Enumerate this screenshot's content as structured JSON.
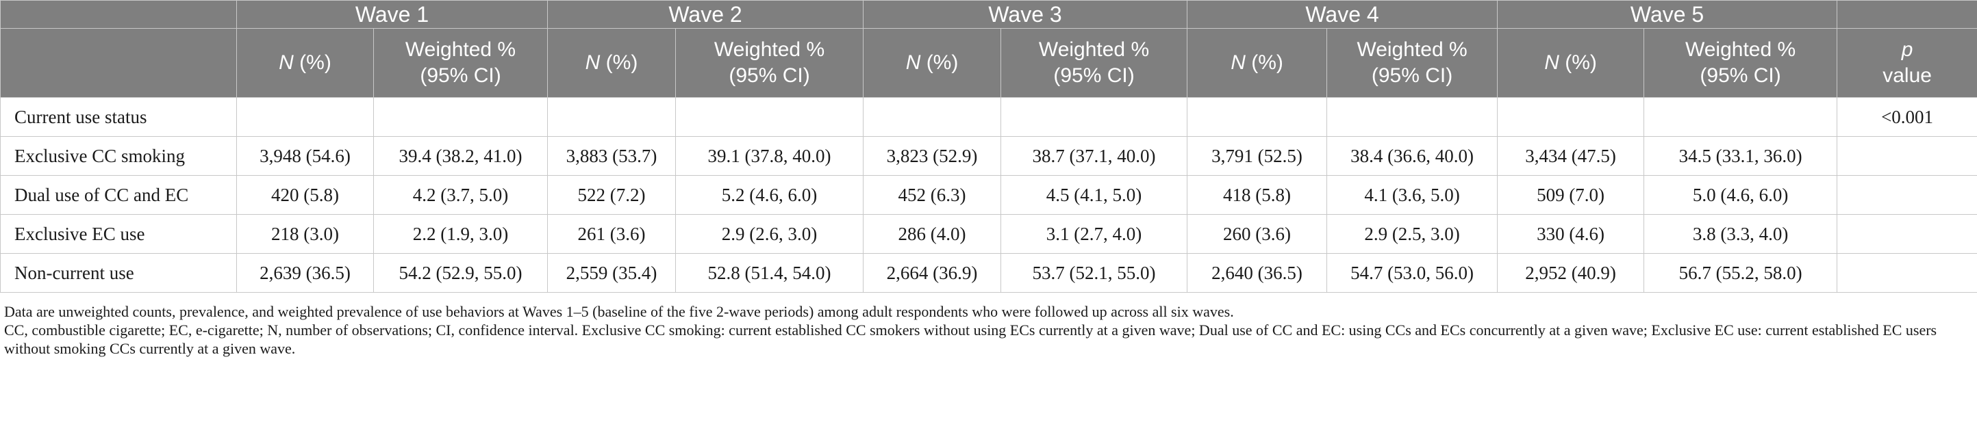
{
  "header": {
    "waves": [
      "Wave 1",
      "Wave 2",
      "Wave 3",
      "Wave 4",
      "Wave 5"
    ],
    "n_label_italic": "N",
    "n_label_rest": " (%)",
    "weighted_label_line1": "Weighted %",
    "weighted_label_line2": "(95% CI)",
    "p_label_line1": "p",
    "p_label_line2": "value"
  },
  "rows": [
    {
      "label": "Current use status",
      "cells": [
        "",
        "",
        "",
        "",
        "",
        "",
        "",
        "",
        "",
        ""
      ],
      "p": "<0.001"
    },
    {
      "label": "Exclusive CC smoking",
      "cells": [
        "3,948 (54.6)",
        "39.4 (38.2, 41.0)",
        "3,883 (53.7)",
        "39.1 (37.8, 40.0)",
        "3,823 (52.9)",
        "38.7 (37.1, 40.0)",
        "3,791 (52.5)",
        "38.4 (36.6, 40.0)",
        "3,434 (47.5)",
        "34.5 (33.1, 36.0)"
      ],
      "p": ""
    },
    {
      "label": "Dual use of CC and EC",
      "cells": [
        "420 (5.8)",
        "4.2 (3.7, 5.0)",
        "522 (7.2)",
        "5.2 (4.6, 6.0)",
        "452 (6.3)",
        "4.5 (4.1, 5.0)",
        "418 (5.8)",
        "4.1 (3.6, 5.0)",
        "509 (7.0)",
        "5.0 (4.6, 6.0)"
      ],
      "p": ""
    },
    {
      "label": "Exclusive EC use",
      "cells": [
        "218 (3.0)",
        "2.2 (1.9, 3.0)",
        "261 (3.6)",
        "2.9 (2.6, 3.0)",
        "286 (4.0)",
        "3.1 (2.7, 4.0)",
        "260 (3.6)",
        "2.9 (2.5, 3.0)",
        "330 (4.6)",
        "3.8 (3.3, 4.0)"
      ],
      "p": ""
    },
    {
      "label": "Non-current use",
      "cells": [
        "2,639 (36.5)",
        "54.2 (52.9, 55.0)",
        "2,559 (35.4)",
        "52.8 (51.4, 54.0)",
        "2,664 (36.9)",
        "53.7 (52.1, 55.0)",
        "2,640 (36.5)",
        "54.7 (53.0, 56.0)",
        "2,952 (40.9)",
        "56.7 (55.2, 58.0)"
      ],
      "p": ""
    }
  ],
  "footnotes": [
    "Data are unweighted counts, prevalence, and weighted prevalence of use behaviors at Waves 1–5 (baseline of the five 2-wave periods) among adult respondents who were followed up across all six waves.",
    "CC, combustible cigarette; EC, e-cigarette; N, number of observations; CI, confidence interval. Exclusive CC smoking: current established CC smokers without using ECs currently at a given wave; Dual use of CC and EC: using CCs and ECs concurrently at a given wave; Exclusive EC use: current established EC users without smoking CCs currently at a given wave."
  ]
}
